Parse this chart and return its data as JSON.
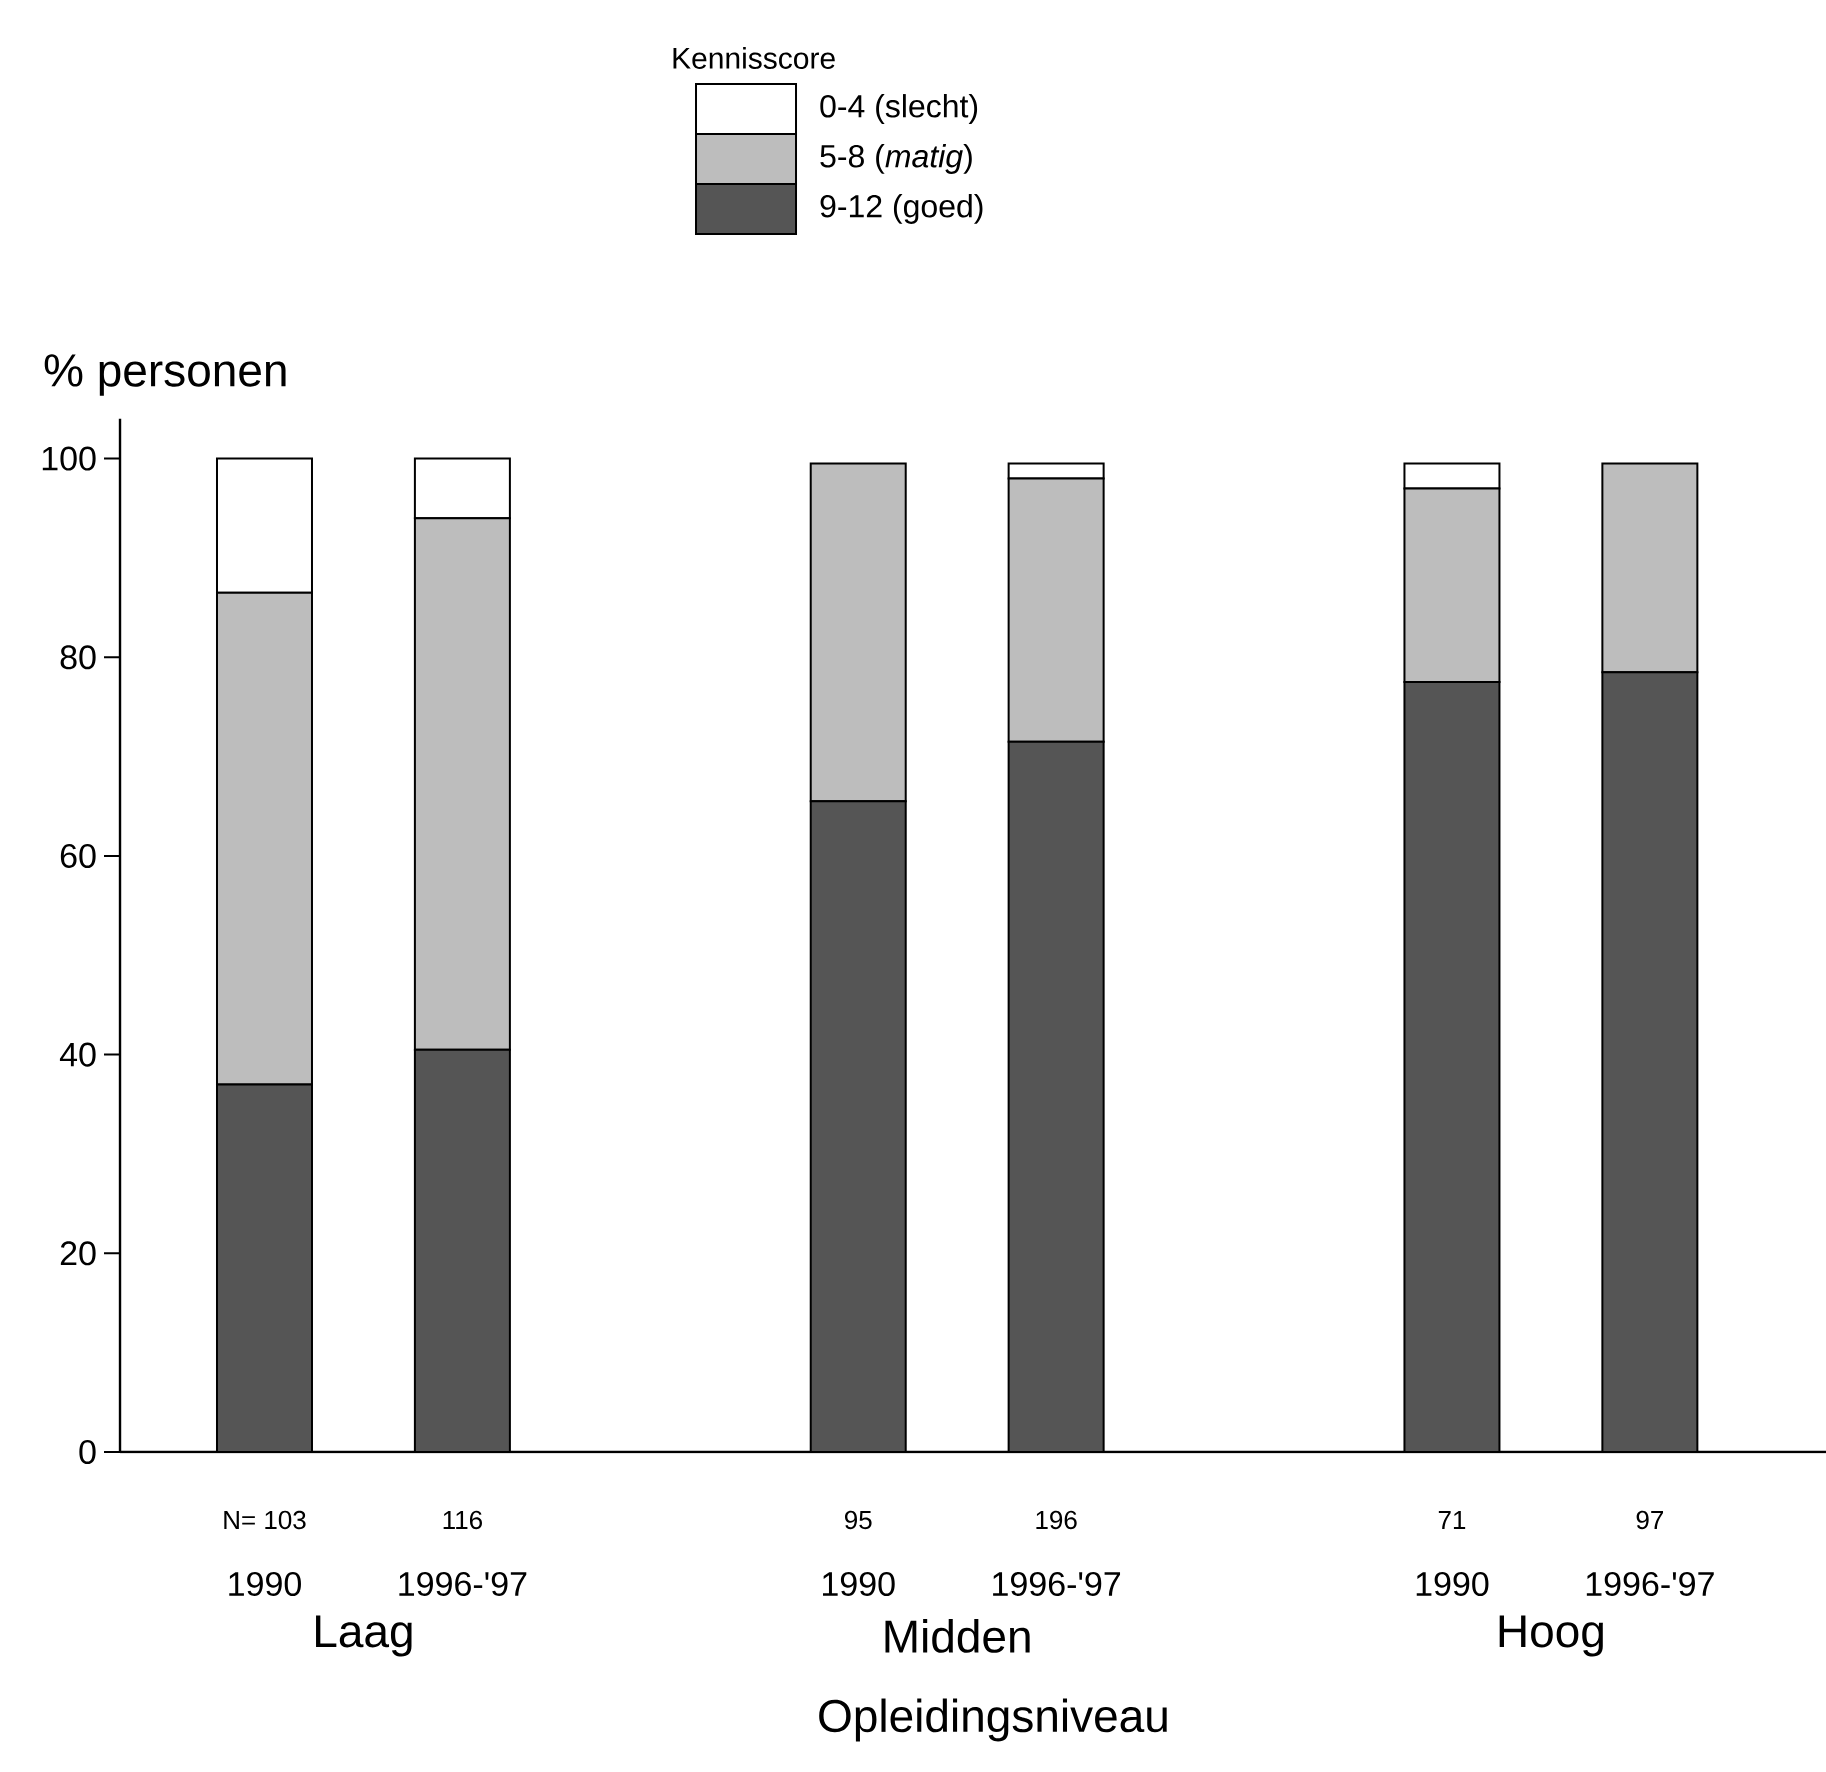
{
  "chart_data": {
    "type": "bar",
    "stacked": true,
    "ylabel": "% personen",
    "xlabel": "Opleidingsniveau",
    "legend_title": "Kennisscore",
    "legend": "top",
    "categories": [
      "1990",
      "1996-'97",
      null,
      "1990",
      "1996-'97",
      null,
      "1990",
      "1996-'97"
    ],
    "series": [
      {
        "name": "9-12 (goed)",
        "color": "#555555",
        "values": [
          37,
          40.5,
          null,
          65.5,
          71.5,
          null,
          77.5,
          78.5
        ]
      },
      {
        "name": "5-8 (*matig*)",
        "color": "#bdbdbd",
        "values": [
          49.5,
          53.5,
          null,
          34,
          26.5,
          null,
          19.5,
          21
        ]
      },
      {
        "name": "0-4 (slecht)",
        "color": "#ffffff",
        "values": [
          13.5,
          6,
          null,
          0,
          1.5,
          null,
          2.5,
          0
        ]
      }
    ],
    "ylim": [
      0,
      104
    ],
    "yticks": [
      0,
      20,
      40,
      60,
      80,
      100
    ],
    "annotations": [
      "N= 103",
      "116",
      "95",
      "196",
      "71",
      "97",
      "Laag",
      "Midden",
      "Hoog"
    ]
  }
}
